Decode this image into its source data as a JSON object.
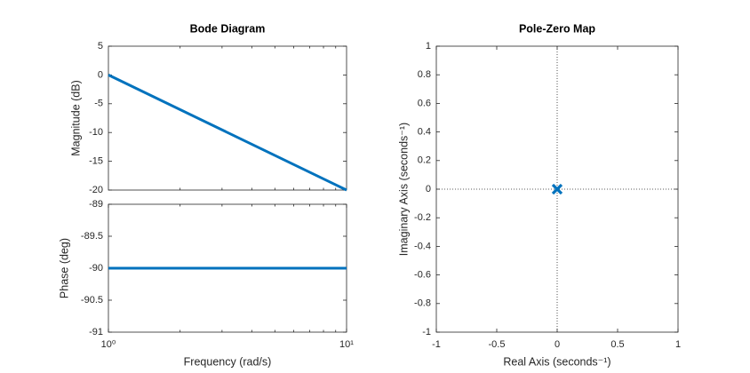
{
  "chart_data": [
    {
      "type": "line",
      "title": "Bode Diagram",
      "ylabel": "Magnitude (dB)",
      "x": [
        1,
        10
      ],
      "series": [
        {
          "color": "#0072bd",
          "values": [
            0,
            -20
          ]
        }
      ],
      "xlim": [
        1,
        10
      ],
      "xscale": "log",
      "xminorticks": [
        2,
        3,
        4,
        5,
        6,
        7,
        8,
        9
      ],
      "ylim": [
        -20,
        5
      ],
      "yticks": [
        5,
        0,
        -5,
        -10,
        -15,
        -20
      ]
    },
    {
      "type": "line",
      "ylabel": "Phase (deg)",
      "xlabel": "Frequency  (rad/s)",
      "x": [
        1,
        10
      ],
      "series": [
        {
          "color": "#0072bd",
          "values": [
            -90,
            -90
          ]
        }
      ],
      "xlim": [
        1,
        10
      ],
      "xscale": "log",
      "xticks": [
        {
          "value": 1,
          "label": "10⁰"
        },
        {
          "value": 10,
          "label": "10¹"
        }
      ],
      "xminorticks": [
        2,
        3,
        4,
        5,
        6,
        7,
        8,
        9
      ],
      "ylim": [
        -91,
        -89
      ],
      "yticks": [
        -89,
        -89.5,
        -90,
        -90.5,
        -91
      ]
    },
    {
      "type": "scatter",
      "title": "Pole-Zero Map",
      "xlabel": "Real Axis (seconds⁻¹)",
      "ylabel": "Imaginary Axis (seconds⁻¹)",
      "series": [
        {
          "color": "#0072bd",
          "marker": "x",
          "x": [
            0
          ],
          "values": [
            0
          ]
        }
      ],
      "xlim": [
        -1,
        1
      ],
      "xticks": [
        -1,
        -0.5,
        0,
        0.5,
        1
      ],
      "ylim": [
        -1,
        1
      ],
      "yticks": [
        1,
        0.8,
        0.6,
        0.4,
        0.2,
        0,
        -0.2,
        -0.4,
        -0.6,
        -0.8,
        -1
      ]
    }
  ]
}
